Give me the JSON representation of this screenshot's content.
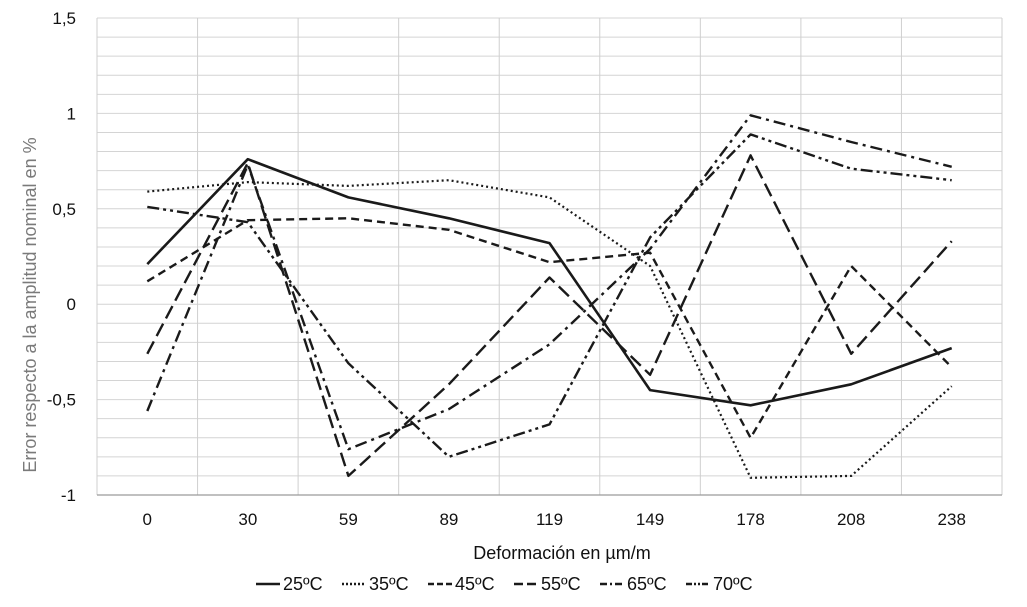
{
  "chart_data": {
    "type": "line",
    "title": "",
    "xlabel": "Deformación en µm/m",
    "ylabel": "Error respecto a la amplitud nominal en %",
    "categories": [
      "0",
      "30",
      "59",
      "89",
      "119",
      "149",
      "178",
      "208",
      "238"
    ],
    "ylim": [
      -1,
      1.5
    ],
    "yticks": [
      -1,
      -0.5,
      0,
      0.5,
      1,
      1.5
    ],
    "ytick_labels": [
      "-1",
      "-0,5",
      "0",
      "0,5",
      "1",
      "1,5"
    ],
    "grid": true,
    "legend_position": "bottom",
    "series": [
      {
        "name": "25ºC",
        "dash": "solid",
        "values": [
          0.21,
          0.76,
          0.56,
          0.45,
          0.32,
          -0.45,
          -0.53,
          -0.42,
          -0.23
        ]
      },
      {
        "name": "35ºC",
        "dash": "dotted",
        "values": [
          0.59,
          0.64,
          0.62,
          0.65,
          0.56,
          0.2,
          -0.91,
          -0.9,
          -0.43
        ]
      },
      {
        "name": "45ºC",
        "dash": "dashed",
        "values": [
          0.12,
          0.44,
          0.45,
          0.39,
          0.22,
          0.27,
          -0.7,
          0.2,
          -0.33
        ]
      },
      {
        "name": "55ºC",
        "dash": "longdash",
        "values": [
          -0.26,
          0.74,
          -0.9,
          -0.42,
          0.14,
          -0.37,
          0.78,
          -0.26,
          0.33
        ]
      },
      {
        "name": "65ºC",
        "dash": "dashdot",
        "values": [
          -0.56,
          0.73,
          -0.76,
          -0.55,
          -0.21,
          0.29,
          0.99,
          0.85,
          0.72
        ]
      },
      {
        "name": "70ºC",
        "dash": "dashdotdot",
        "values": [
          0.51,
          0.43,
          -0.31,
          -0.8,
          -0.63,
          0.35,
          0.89,
          0.71,
          0.65
        ]
      }
    ]
  }
}
